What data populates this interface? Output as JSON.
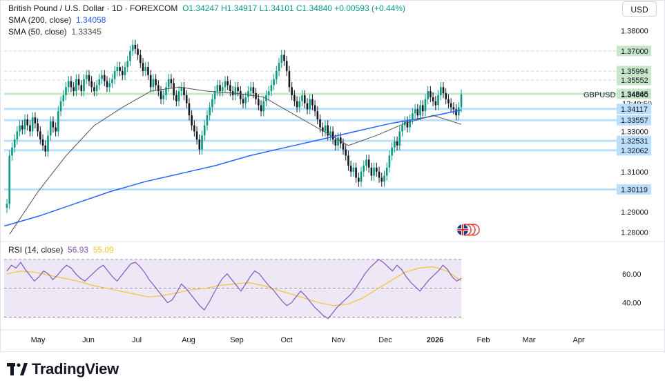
{
  "header": {
    "symbol_title": "British Pound / U.S. Dollar · 1D · FOREXCOM",
    "ohlc": "O1.34247  H1.34917  L1.34101  C1.34840  +0.00593 (+0.44%)",
    "sma200_label": "SMA (200, close)",
    "sma200_value": "1.34058",
    "sma50_label": "SMA (50, close)",
    "sma50_value": "1.33345",
    "currency": "USD"
  },
  "rsi": {
    "label": "RSI (14, close)",
    "value": "56.93",
    "ma_value": "55.09"
  },
  "brand": {
    "name": "TradingView"
  },
  "colors": {
    "up": "#089981",
    "down": "#131722",
    "sma200": "#2962ff",
    "sma50": "#505050",
    "rsi_line": "#7e57c2",
    "rsi_ma": "#f4c430",
    "rsi_band": "#ede7f6",
    "level_blue": "#bbdefb",
    "level_green": "#c8e6c9"
  },
  "chart_data": {
    "type": "candlestick",
    "title": "British Pound / U.S. Dollar · 1D · FOREXCOM",
    "x_months": [
      "May",
      "Jun",
      "Jul",
      "Aug",
      "Sep",
      "Oct",
      "Nov",
      "Dec",
      "2026",
      "Feb",
      "Mar",
      "Apr"
    ],
    "y_ticks": [
      "1.38000",
      "1.31000",
      "1.29000",
      "1.28000"
    ],
    "ylim": [
      1.277,
      1.385
    ],
    "price_labels": [
      {
        "value": 1.37,
        "text": "1.37000",
        "style": "green"
      },
      {
        "value": 1.35994,
        "text": "1.35994",
        "style": "green"
      },
      {
        "value": 1.35552,
        "text": "1.35552",
        "style": "green"
      },
      {
        "value": 1.34865,
        "text": "1.34865",
        "style": "green"
      },
      {
        "value": 1.3484,
        "text": "1.34840",
        "style": "plain",
        "tag": "GBPUSD",
        "sub": "12:49:50"
      },
      {
        "value": 1.34117,
        "text": "1.34117",
        "style": "blue"
      },
      {
        "value": 1.33557,
        "text": "1.33557",
        "style": "blue"
      },
      {
        "value": 1.33,
        "text": "1.33000",
        "style": "plain"
      },
      {
        "value": 1.32531,
        "text": "1.32531",
        "style": "blue"
      },
      {
        "value": 1.32062,
        "text": "1.32062",
        "style": "blue"
      },
      {
        "value": 1.30119,
        "text": "1.30119",
        "style": "blue"
      }
    ],
    "levels": [
      {
        "value": 1.37,
        "kind": "dashed"
      },
      {
        "value": 1.35994,
        "kind": "dashed"
      },
      {
        "value": 1.35552,
        "kind": "dashed"
      },
      {
        "value": 1.34865,
        "kind": "green"
      },
      {
        "value": 1.34117,
        "kind": "blue"
      },
      {
        "value": 1.33557,
        "kind": "blue"
      },
      {
        "value": 1.32531,
        "kind": "blue"
      },
      {
        "value": 1.32062,
        "kind": "blue"
      },
      {
        "value": 1.30119,
        "kind": "blue"
      }
    ],
    "close_series": [
      1.294,
      1.318,
      1.322,
      1.326,
      1.33,
      1.333,
      1.331,
      1.336,
      1.333,
      1.33,
      1.337,
      1.334,
      1.33,
      1.326,
      1.323,
      1.32,
      1.328,
      1.335,
      1.332,
      1.33,
      1.34,
      1.345,
      1.348,
      1.352,
      1.355,
      1.352,
      1.35,
      1.356,
      1.353,
      1.35,
      1.356,
      1.358,
      1.355,
      1.352,
      1.35,
      1.353,
      1.356,
      1.358,
      1.355,
      1.352,
      1.354,
      1.356,
      1.36,
      1.362,
      1.36,
      1.358,
      1.362,
      1.365,
      1.37,
      1.373,
      1.371,
      1.368,
      1.364,
      1.36,
      1.362,
      1.358,
      1.352,
      1.356,
      1.353,
      1.35,
      1.346,
      1.348,
      1.352,
      1.356,
      1.354,
      1.348,
      1.345,
      1.35,
      1.352,
      1.348,
      1.344,
      1.338,
      1.333,
      1.33,
      1.326,
      1.321,
      1.328,
      1.333,
      1.338,
      1.342,
      1.346,
      1.35,
      1.353,
      1.35,
      1.352,
      1.355,
      1.353,
      1.35,
      1.348,
      1.352,
      1.35,
      1.346,
      1.344,
      1.347,
      1.35,
      1.352,
      1.349,
      1.346,
      1.343,
      1.34,
      1.345,
      1.348,
      1.35,
      1.353,
      1.356,
      1.36,
      1.364,
      1.368,
      1.365,
      1.36,
      1.352,
      1.348,
      1.345,
      1.342,
      1.345,
      1.348,
      1.344,
      1.341,
      1.346,
      1.343,
      1.34,
      1.336,
      1.332,
      1.33,
      1.333,
      1.328,
      1.33,
      1.326,
      1.323,
      1.327,
      1.324,
      1.321,
      1.318,
      1.313,
      1.31,
      1.312,
      1.307,
      1.305,
      1.31,
      1.313,
      1.316,
      1.312,
      1.308,
      1.312,
      1.31,
      1.307,
      1.305,
      1.308,
      1.312,
      1.318,
      1.322,
      1.325,
      1.323,
      1.33,
      1.333,
      1.335,
      1.332,
      1.336,
      1.339,
      1.341,
      1.338,
      1.343,
      1.34,
      1.346,
      1.35,
      1.347,
      1.345,
      1.343,
      1.348,
      1.352,
      1.349,
      1.346,
      1.344,
      1.342,
      1.341,
      1.338,
      1.342,
      1.3484
    ],
    "sma200_series": [
      1.283,
      1.288,
      1.294,
      1.3,
      1.305,
      1.309,
      1.313,
      1.318,
      1.322,
      1.326,
      1.33,
      1.334,
      1.337,
      1.3406
    ],
    "sma50_series": [
      1.279,
      1.3,
      1.318,
      1.333,
      1.342,
      1.35,
      1.352,
      1.35,
      1.349,
      1.347,
      1.339,
      1.331,
      1.323,
      1.328,
      1.334,
      1.338,
      1.3335
    ],
    "rsi_ticks": [
      "60.00",
      "40.00"
    ],
    "rsi_series": [
      62,
      66,
      64,
      68,
      63,
      59,
      55,
      58,
      62,
      60,
      56,
      59,
      63,
      66,
      64,
      60,
      57,
      55,
      58,
      61,
      64,
      66,
      62,
      58,
      55,
      59,
      63,
      67,
      68,
      65,
      61,
      56,
      52,
      48,
      44,
      40,
      42,
      47,
      53,
      50,
      46,
      42,
      38,
      35,
      40,
      46,
      52,
      57,
      60,
      56,
      52,
      48,
      53,
      58,
      62,
      60,
      56,
      52,
      49,
      45,
      41,
      38,
      40,
      44,
      48,
      45,
      41,
      37,
      34,
      31,
      29,
      33,
      37,
      40,
      43,
      46,
      50,
      55,
      60,
      64,
      67,
      70,
      68,
      65,
      62,
      66,
      63,
      58,
      54,
      51,
      48,
      52,
      56,
      59,
      62,
      66,
      63,
      58,
      55,
      56.93
    ],
    "rsi_ma_series": [
      60,
      62,
      61,
      59,
      57,
      55,
      52,
      50,
      48,
      46,
      44,
      45,
      47,
      49,
      50,
      52,
      53,
      54,
      52,
      49,
      46,
      43,
      40,
      38,
      39,
      43,
      49,
      55,
      61,
      64,
      65,
      62,
      55.09
    ]
  }
}
